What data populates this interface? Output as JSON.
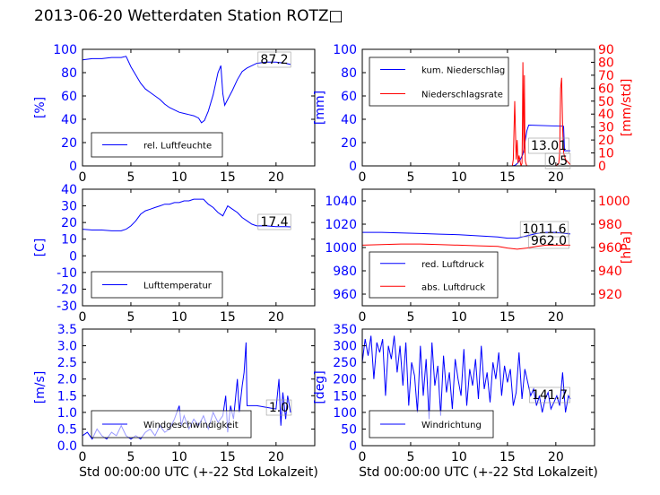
{
  "page": {
    "title": "2013-06-20 Wetterdaten Station ROTZ□"
  },
  "colors": {
    "primary": "#0000ff",
    "secondary": "#ff0000",
    "axis": "#000000"
  },
  "chart_data": [
    {
      "id": "humidity",
      "type": "line",
      "xlim": [
        0,
        24
      ],
      "ylim": [
        0,
        100
      ],
      "xticks": [
        0,
        5,
        10,
        15,
        20
      ],
      "yticks": [
        0,
        20,
        40,
        60,
        80,
        100
      ],
      "ylabel": "[%]",
      "current_value": "87.2",
      "series": [
        {
          "name": "rel. Luftfeuchte",
          "color": "#0000ff",
          "x": [
            0,
            1,
            2,
            3,
            4,
            4.5,
            5,
            5.5,
            6,
            6.5,
            7,
            7.5,
            8,
            8.5,
            9,
            9.5,
            10,
            10.5,
            11,
            11.5,
            12,
            12.3,
            12.6,
            13,
            13.5,
            14,
            14.3,
            14.5,
            14.7,
            15,
            15.5,
            16,
            16.5,
            17,
            17.5,
            18,
            19,
            20,
            21,
            21.5
          ],
          "y": [
            91,
            92,
            92,
            93,
            93,
            94,
            85,
            78,
            71,
            66,
            63,
            60,
            57,
            53,
            50,
            48,
            46,
            45,
            44,
            43,
            41,
            37,
            39,
            47,
            61,
            80,
            86,
            62,
            52,
            57,
            65,
            74,
            81,
            84,
            86,
            88,
            89,
            89,
            88,
            87
          ]
        }
      ]
    },
    {
      "id": "precipitation",
      "type": "line",
      "xlim": [
        0,
        24
      ],
      "ylim": [
        0,
        100
      ],
      "xticks": [
        0,
        5,
        10,
        15,
        20
      ],
      "yticks": [
        0,
        20,
        40,
        60,
        80,
        100
      ],
      "ylabel": "[mm]",
      "y2lim": [
        0,
        90
      ],
      "y2ticks": [
        0,
        10,
        20,
        30,
        40,
        50,
        60,
        70,
        80,
        90
      ],
      "y2label": "[mm/std]",
      "current_value": "13.01",
      "current_value_2": "0.5",
      "series": [
        {
          "name": "kum. Niederschlag",
          "color": "#0000ff",
          "axis": "left",
          "x": [
            0,
            15.5,
            15.8,
            16.0,
            16.3,
            16.6,
            16.8,
            17.0,
            17.2,
            20.8,
            20.9,
            21.0,
            21.3,
            21.5
          ],
          "y": [
            0,
            0,
            0.5,
            2,
            5,
            10,
            20,
            30,
            35,
            34,
            13,
            13,
            13,
            13
          ]
        },
        {
          "name": "Niederschlagsrate",
          "color": "#ff0000",
          "axis": "right",
          "x": [
            0,
            15.5,
            15.6,
            15.75,
            15.9,
            16.0,
            16.1,
            16.2,
            16.4,
            16.5,
            16.55,
            16.6,
            16.7,
            16.75,
            16.8,
            16.85,
            16.9,
            17.0,
            17.2,
            17.5,
            18.0,
            18.5,
            19.0,
            19.5,
            20.0,
            20.3,
            20.4,
            20.5,
            20.6,
            20.7,
            20.8,
            21.0,
            21.5
          ],
          "y": [
            0,
            0,
            5,
            50,
            5,
            20,
            2,
            8,
            0,
            2,
            30,
            80,
            10,
            70,
            20,
            4,
            2,
            0,
            0,
            0,
            0,
            0,
            0,
            0,
            0,
            2,
            10,
            60,
            68,
            30,
            10,
            5,
            1
          ]
        }
      ]
    },
    {
      "id": "temperature",
      "type": "line",
      "xlim": [
        0,
        24
      ],
      "ylim": [
        -30,
        40
      ],
      "xticks": [
        0,
        5,
        10,
        15,
        20
      ],
      "yticks": [
        -30,
        -20,
        -10,
        0,
        10,
        20,
        30,
        40
      ],
      "ylabel": "[C]",
      "current_value": "17.4",
      "series": [
        {
          "name": "Lufttemperatur",
          "color": "#0000ff",
          "x": [
            0,
            1,
            2,
            3,
            4,
            4.5,
            5,
            5.5,
            6,
            6.5,
            7,
            7.5,
            8,
            8.5,
            9,
            9.5,
            10,
            10.5,
            11,
            11.5,
            12,
            12.5,
            13,
            13.5,
            14,
            14.5,
            15,
            15.5,
            16,
            16.5,
            17,
            17.5,
            18,
            19,
            20,
            21,
            21.5
          ],
          "y": [
            16,
            15.5,
            15.5,
            15,
            15,
            16,
            18,
            21,
            25,
            27,
            28,
            29,
            30,
            31,
            31,
            32,
            32,
            33,
            33,
            34,
            34,
            34,
            31,
            29,
            26,
            24,
            30,
            28,
            26,
            23,
            21,
            19,
            18,
            18,
            17.5,
            17.5,
            17.4
          ]
        }
      ]
    },
    {
      "id": "pressure",
      "type": "line",
      "xlim": [
        0,
        24
      ],
      "ylim": [
        950,
        1050
      ],
      "xticks": [
        0,
        5,
        10,
        15,
        20
      ],
      "yticks": [
        960,
        980,
        1000,
        1020,
        1040
      ],
      "ylabel": "",
      "y2lim": [
        910,
        1010
      ],
      "y2ticks": [
        920,
        940,
        960,
        980,
        1000
      ],
      "y2label": "[hPa]",
      "current_value": "1011.6",
      "current_value_2": "962.0",
      "series": [
        {
          "name": "red. Luftdruck",
          "color": "#0000ff",
          "axis": "left",
          "x": [
            0,
            2,
            4,
            6,
            8,
            10,
            12,
            14,
            15,
            16,
            17,
            18,
            19,
            20,
            21,
            21.5
          ],
          "y": [
            1013,
            1013,
            1012.5,
            1012,
            1011.5,
            1011,
            1010,
            1009,
            1008,
            1008,
            1010,
            1012,
            1013,
            1013,
            1012,
            1011.6
          ]
        },
        {
          "name": "abs. Luftdruck",
          "color": "#ff0000",
          "axis": "right",
          "x": [
            0,
            2,
            4,
            6,
            8,
            10,
            12,
            14,
            15,
            16,
            17,
            18,
            19,
            20,
            21,
            21.5
          ],
          "y": [
            962,
            962.5,
            963,
            963,
            962.5,
            962,
            961.5,
            961,
            959.5,
            958.5,
            959.5,
            961,
            962,
            962,
            962,
            962.0
          ]
        }
      ]
    },
    {
      "id": "wind-speed",
      "type": "line",
      "xlim": [
        0,
        24
      ],
      "ylim": [
        0,
        3.5
      ],
      "xticks": [
        0,
        5,
        10,
        15,
        20
      ],
      "yticks": [
        0.0,
        0.5,
        1.0,
        1.5,
        2.0,
        2.5,
        3.0,
        3.5
      ],
      "ylabel": "[m/s]",
      "xlabel": "Std 00:00:00 UTC (+-22 Std Lokalzeit)",
      "current_value": "1.0",
      "series": [
        {
          "name": "Windgeschwindigkeit",
          "color": "#0000ff",
          "x": [
            0,
            0.5,
            1,
            1.5,
            2,
            2.5,
            3,
            3.5,
            4,
            4.5,
            5,
            5.5,
            6,
            6.5,
            7,
            7.5,
            8,
            8.5,
            9,
            9.5,
            10,
            10.2,
            10.5,
            11,
            11.5,
            12,
            12.5,
            13,
            13.5,
            14,
            14.5,
            14.8,
            15,
            15.3,
            15.6,
            16,
            16.2,
            16.5,
            16.7,
            16.9,
            17,
            17.5,
            18,
            19,
            20,
            20.3,
            20.5,
            20.7,
            21,
            21.2,
            21.5
          ],
          "y": [
            0.3,
            0.4,
            0.2,
            0.5,
            0.3,
            0.2,
            0.4,
            0.3,
            0.6,
            0.3,
            0.2,
            0.3,
            0.2,
            0.4,
            0.5,
            0.3,
            0.6,
            0.4,
            0.5,
            0.8,
            1.2,
            0.6,
            0.9,
            0.5,
            0.8,
            0.6,
            0.9,
            0.5,
            1.0,
            0.7,
            0.9,
            1.5,
            0.4,
            1.2,
            0.8,
            2.0,
            1.0,
            1.8,
            2.2,
            3.1,
            1.2,
            1.2,
            1.2,
            1.15,
            1.1,
            2.0,
            0.6,
            1.6,
            0.8,
            1.5,
            1.0
          ]
        }
      ]
    },
    {
      "id": "wind-direction",
      "type": "line",
      "xlim": [
        0,
        24
      ],
      "ylim": [
        0,
        350
      ],
      "xticks": [
        0,
        5,
        10,
        15,
        20
      ],
      "yticks": [
        0,
        50,
        100,
        150,
        200,
        250,
        300,
        350
      ],
      "ylabel": "[deg]",
      "xlabel": "Std 00:00:00 UTC (+-22 Std Lokalzeit)",
      "current_value": "141.7",
      "series": [
        {
          "name": "Windrichtung",
          "color": "#0000ff",
          "x": [
            0,
            0.3,
            0.6,
            0.9,
            1.2,
            1.5,
            1.8,
            2.1,
            2.4,
            2.7,
            3.0,
            3.3,
            3.6,
            3.9,
            4.2,
            4.5,
            4.8,
            5.1,
            5.4,
            5.7,
            6.0,
            6.3,
            6.6,
            6.9,
            7.2,
            7.5,
            7.8,
            8.1,
            8.4,
            8.7,
            9.0,
            9.3,
            9.6,
            9.9,
            10.2,
            10.5,
            10.8,
            11.1,
            11.4,
            11.7,
            12.0,
            12.3,
            12.6,
            12.9,
            13.2,
            13.5,
            13.8,
            14.1,
            14.4,
            14.7,
            15.0,
            15.3,
            15.6,
            15.9,
            16.2,
            16.5,
            16.8,
            17.1,
            17.4,
            17.7,
            18.0,
            18.3,
            18.6,
            18.9,
            19.2,
            19.5,
            19.8,
            20.1,
            20.4,
            20.7,
            21.0,
            21.3,
            21.5
          ],
          "y": [
            250,
            320,
            270,
            330,
            200,
            310,
            280,
            320,
            150,
            300,
            260,
            330,
            220,
            300,
            180,
            310,
            120,
            250,
            210,
            100,
            300,
            150,
            260,
            80,
            310,
            180,
            240,
            90,
            270,
            160,
            220,
            110,
            260,
            200,
            150,
            290,
            120,
            230,
            180,
            260,
            140,
            300,
            170,
            220,
            130,
            250,
            200,
            280,
            150,
            240,
            190,
            230,
            120,
            160,
            280,
            140,
            230,
            190,
            150,
            170,
            120,
            150,
            100,
            140,
            160,
            110,
            130,
            150,
            120,
            220,
            100,
            150,
            140
          ]
        }
      ]
    }
  ]
}
